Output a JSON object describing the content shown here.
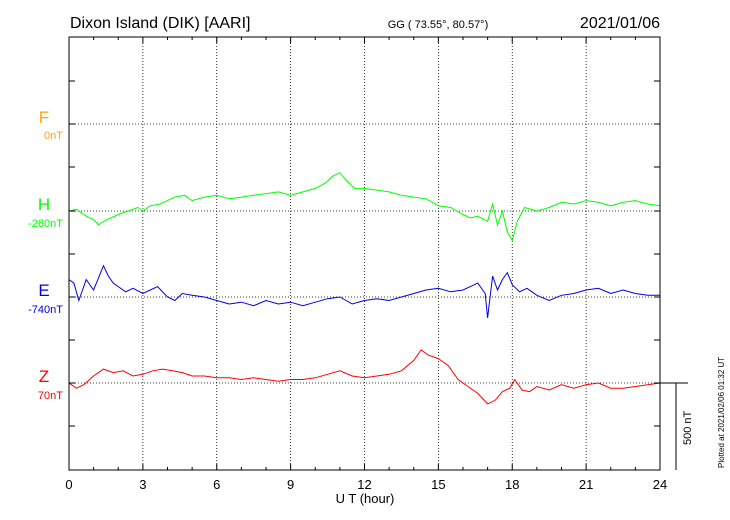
{
  "header": {
    "station": "Dixon Island (DIK)  [AARI]",
    "coords": "GG ( 73.55°,  80.57°)",
    "date": "2021/01/06"
  },
  "axes": {
    "xlabel": "U T (hour)",
    "x_ticks": [
      "0",
      "3",
      "6",
      "9",
      "12",
      "15",
      "18",
      "21",
      "24"
    ],
    "scale_label": "500 nT"
  },
  "footer": {
    "plotted": "Plotted at 2021/02/06 01:32 UT"
  },
  "chart_data": {
    "type": "line",
    "xlim": [
      0,
      24
    ],
    "grid": true,
    "scale_bar_nT": 500,
    "series": [
      {
        "name": "F",
        "baseline_label": "0nT",
        "color": "#ffa500",
        "x": [],
        "values": []
      },
      {
        "name": "H",
        "baseline_label": "-260nT",
        "color": "#00ff00",
        "x": [
          0,
          0.3,
          0.7,
          1.0,
          1.2,
          1.4,
          1.7,
          2.0,
          2.4,
          2.8,
          3.0,
          3.3,
          3.7,
          4.0,
          4.3,
          4.7,
          5.0,
          5.5,
          6.0,
          6.5,
          7.0,
          7.5,
          8.0,
          8.5,
          9.0,
          9.5,
          10.0,
          10.4,
          10.7,
          11.0,
          11.3,
          11.6,
          12.0,
          12.5,
          13.0,
          13.5,
          14.0,
          14.5,
          15.0,
          15.5,
          16.0,
          16.3,
          16.6,
          17.0,
          17.2,
          17.4,
          17.6,
          17.8,
          18.0,
          18.2,
          18.5,
          19.0,
          19.5,
          20.0,
          20.5,
          21.0,
          21.5,
          22.0,
          22.5,
          23.0,
          23.5,
          24.0
        ],
        "values": [
          -260,
          -250,
          -290,
          -310,
          -340,
          -320,
          -300,
          -280,
          -260,
          -240,
          -260,
          -230,
          -220,
          -200,
          -180,
          -170,
          -200,
          -180,
          -170,
          -190,
          -180,
          -170,
          -160,
          -150,
          -170,
          -150,
          -130,
          -100,
          -60,
          -40,
          -90,
          -130,
          -130,
          -140,
          -150,
          -170,
          -180,
          -190,
          -230,
          -240,
          -280,
          -300,
          -290,
          -320,
          -220,
          -340,
          -260,
          -380,
          -430,
          -320,
          -240,
          -260,
          -240,
          -210,
          -220,
          -200,
          -210,
          -230,
          -210,
          -200,
          -220,
          -230
        ]
      },
      {
        "name": "E",
        "baseline_label": "-740nT",
        "color": "#0000dd",
        "x": [
          0,
          0.2,
          0.4,
          0.7,
          1.0,
          1.2,
          1.4,
          1.6,
          1.8,
          2.0,
          2.3,
          2.6,
          3.0,
          3.3,
          3.6,
          4.0,
          4.3,
          4.6,
          5.0,
          5.5,
          6.0,
          6.5,
          7.0,
          7.5,
          8.0,
          8.5,
          9.0,
          9.5,
          10.0,
          10.5,
          11.0,
          11.5,
          12.0,
          12.5,
          13.0,
          13.5,
          14.0,
          14.5,
          15.0,
          15.5,
          16.0,
          16.3,
          16.6,
          16.9,
          17.0,
          17.2,
          17.4,
          17.6,
          17.8,
          18.0,
          18.3,
          18.6,
          19.0,
          19.5,
          20.0,
          20.5,
          21.0,
          21.5,
          22.0,
          22.5,
          23.0,
          23.5,
          24.0
        ],
        "values": [
          -640,
          -660,
          -760,
          -640,
          -700,
          -630,
          -560,
          -620,
          -660,
          -680,
          -710,
          -690,
          -720,
          -700,
          -680,
          -740,
          -760,
          -720,
          -730,
          -740,
          -760,
          -780,
          -770,
          -790,
          -760,
          -780,
          -770,
          -790,
          -770,
          -750,
          -740,
          -780,
          -760,
          -750,
          -760,
          -740,
          -720,
          -700,
          -690,
          -710,
          -700,
          -680,
          -660,
          -720,
          -860,
          -620,
          -700,
          -640,
          -600,
          -670,
          -710,
          -690,
          -730,
          -760,
          -730,
          -720,
          -700,
          -690,
          -720,
          -700,
          -720,
          -730,
          -730
        ]
      },
      {
        "name": "Z",
        "baseline_label": "70nT",
        "color": "#ff0000",
        "x": [
          0,
          0.3,
          0.6,
          1.0,
          1.4,
          1.8,
          2.2,
          2.6,
          3.0,
          3.4,
          3.8,
          4.2,
          4.6,
          5.0,
          5.5,
          6.0,
          6.5,
          7.0,
          7.5,
          8.0,
          8.5,
          9.0,
          9.5,
          10.0,
          10.5,
          11.0,
          11.5,
          12.0,
          12.5,
          13.0,
          13.5,
          14.0,
          14.3,
          14.6,
          15.0,
          15.4,
          15.8,
          16.2,
          16.6,
          17.0,
          17.3,
          17.6,
          17.9,
          18.1,
          18.4,
          18.7,
          19.0,
          19.5,
          20.0,
          20.5,
          21.0,
          21.5,
          22.0,
          22.5,
          23.0,
          23.5,
          24.0
        ],
        "values": [
          70,
          40,
          60,
          110,
          150,
          130,
          140,
          110,
          120,
          140,
          150,
          140,
          130,
          110,
          110,
          100,
          100,
          90,
          100,
          90,
          80,
          90,
          90,
          100,
          120,
          140,
          110,
          100,
          110,
          120,
          140,
          200,
          260,
          230,
          210,
          170,
          90,
          50,
          10,
          -50,
          -30,
          20,
          40,
          90,
          30,
          20,
          50,
          30,
          60,
          40,
          60,
          70,
          40,
          40,
          50,
          60,
          70
        ]
      }
    ]
  }
}
